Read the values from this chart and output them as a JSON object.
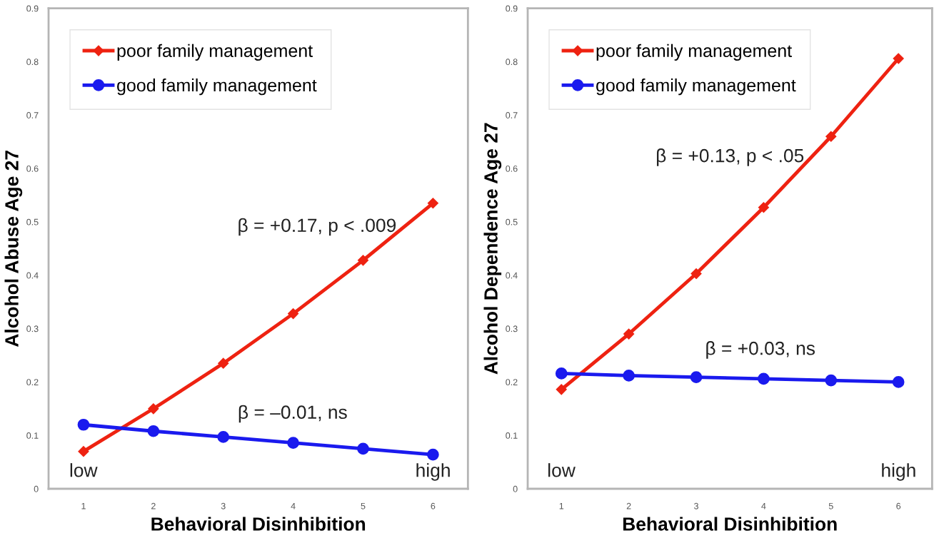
{
  "chart_data": [
    {
      "type": "line",
      "xlabel": "Behavioral Disinhibition",
      "ylabel": "Alcohol Abuse Age 27",
      "x": [
        1,
        2,
        3,
        4,
        5,
        6
      ],
      "xlim": [
        0.5,
        6.5
      ],
      "xticks": [
        1,
        2,
        3,
        4,
        5,
        6
      ],
      "ylim": [
        0,
        0.9
      ],
      "yticks": [
        0,
        0.1,
        0.2,
        0.3,
        0.4,
        0.5,
        0.6,
        0.7,
        0.8,
        0.9
      ],
      "grid": false,
      "legend": "top left",
      "series": [
        {
          "name": "poor family management",
          "color": "#ee2211",
          "marker": "diamond",
          "values": [
            0.07,
            0.15,
            0.235,
            0.328,
            0.428,
            0.535
          ]
        },
        {
          "name": "good family management",
          "color": "#1a1aee",
          "marker": "circle",
          "values": [
            0.12,
            0.108,
            0.097,
            0.086,
            0.075,
            0.064
          ]
        }
      ],
      "annotations": [
        "β = +0.17, p < .009",
        "β = –0.01, ns",
        "low",
        "high"
      ]
    },
    {
      "type": "line",
      "xlabel": "Behavioral Disinhibition",
      "ylabel": "Alcohol Dependence Age 27",
      "x": [
        1,
        2,
        3,
        4,
        5,
        6
      ],
      "xlim": [
        0.5,
        6.5
      ],
      "xticks": [
        1,
        2,
        3,
        4,
        5,
        6
      ],
      "ylim": [
        0,
        0.9
      ],
      "yticks": [
        0,
        0.1,
        0.2,
        0.3,
        0.4,
        0.5,
        0.6,
        0.7,
        0.8,
        0.9
      ],
      "grid": false,
      "legend": "top left",
      "series": [
        {
          "name": "poor family management",
          "color": "#ee2211",
          "marker": "diamond",
          "values": [
            0.186,
            0.29,
            0.403,
            0.527,
            0.66,
            0.806
          ]
        },
        {
          "name": "good family management",
          "color": "#1a1aee",
          "marker": "circle",
          "values": [
            0.216,
            0.212,
            0.209,
            0.206,
            0.203,
            0.2
          ]
        }
      ],
      "annotations": [
        "β = +0.13, p < .05",
        "β = +0.03, ns",
        "low",
        "high"
      ]
    }
  ]
}
